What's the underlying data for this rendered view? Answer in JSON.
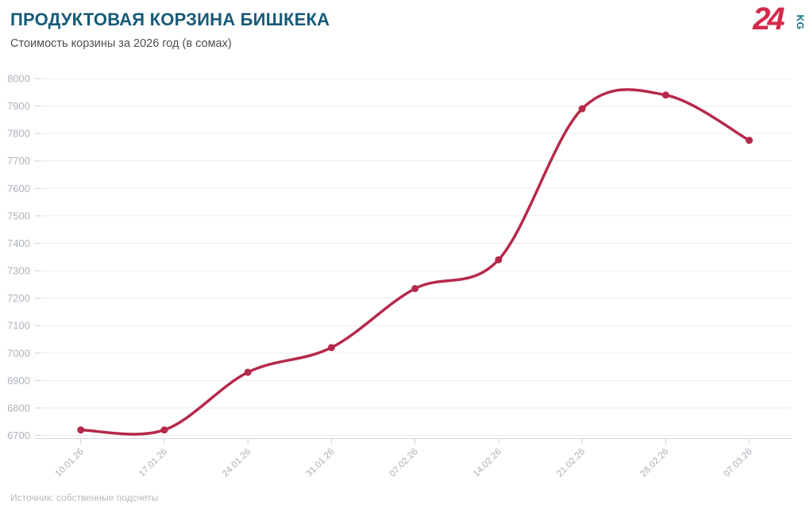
{
  "header": {
    "title": "ПРОДУКТОВАЯ КОРЗИНА БИШКЕКА",
    "subtitle": "Стоимость корзины за 2026 год (в сомах)"
  },
  "logo": {
    "number": "24",
    "suffix": "KG",
    "red": "#d52a4b",
    "teal": "#136a80"
  },
  "chart_data": {
    "type": "line",
    "title": "ПРОДУКТОВАЯ КОРЗИНА БИШКЕКА",
    "subtitle": "Стоимость корзины за 2026 год (в сомах)",
    "categories": [
      "10.01.26",
      "17.01.26",
      "24.01.26",
      "31.01.26",
      "07.02.26",
      "14.02.26",
      "21.02.26",
      "28.02.26",
      "07.03.26"
    ],
    "values": [
      6720,
      6720,
      6930,
      7020,
      7235,
      7340,
      7890,
      7940,
      7775
    ],
    "xlabel": "",
    "ylabel": "",
    "ylim": [
      6700,
      8000
    ],
    "ytick_step": 100,
    "grid": "horizontal",
    "legend": "none",
    "line_color": "#b5294a",
    "point_color": "#b5294a",
    "grid_color": "#ececee",
    "tick_color": "#ccd0d5",
    "axis_line_color": "#d7dade",
    "y_label_color": "#adb3bb",
    "x_label_color": "#a8aeb6"
  },
  "footer": {
    "source": "Источник: собственные подсчеты"
  }
}
